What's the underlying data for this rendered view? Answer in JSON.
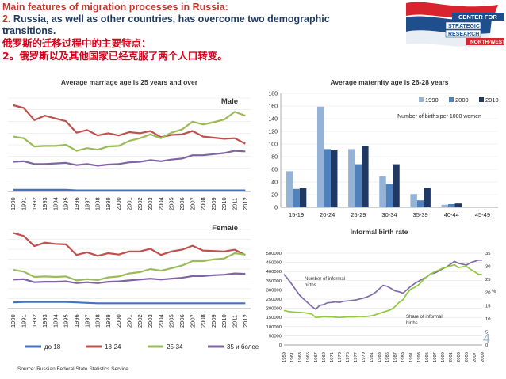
{
  "header": {
    "title_line1": "Main features of migration processes in Russia:",
    "point_number": "2.",
    "title_line2": " Russia, as well as other countries, has overcome two demographic transitions.",
    "cn_line1": "俄罗斯的迁移过程中的主要特点：",
    "cn_line2": "2。俄罗斯以及其他国家已经克服了两个人口转变。"
  },
  "logo": {
    "line1": "CENTER FOR",
    "line2": "STRATEGIC",
    "line3": "RESEARCH",
    "line4": "NORTH-WEST",
    "colors": {
      "red": "#d9232e",
      "blue": "#1f4e8c",
      "white": "#ffffff"
    }
  },
  "source": "Source: Russian Federal State Statistics Service",
  "page_number": "4",
  "chart_data": [
    {
      "type": "line",
      "title": "Average marriage age is 25 years and over",
      "panel_label": "Male",
      "x": [
        "1990",
        "1991",
        "1992",
        "1993",
        "1994",
        "1995",
        "1996",
        "1997",
        "1998",
        "1999",
        "2000",
        "2001",
        "2002",
        "2003",
        "2004",
        "2005",
        "2006",
        "2007",
        "2008",
        "2009",
        "2010",
        "2011",
        "2012"
      ],
      "ylim": [
        0,
        170
      ],
      "grid": true,
      "series": [
        {
          "name": "до 18",
          "color": "#4472c4",
          "values": [
            3,
            3,
            3,
            3,
            3,
            3,
            2,
            2,
            2,
            2,
            2,
            2,
            2,
            2,
            2,
            2,
            2,
            2,
            2,
            2,
            2,
            2,
            2
          ]
        },
        {
          "name": "18-24",
          "color": "#c0504d",
          "values": [
            157,
            152,
            130,
            138,
            133,
            128,
            107,
            112,
            102,
            106,
            102,
            108,
            106,
            110,
            99,
            103,
            104,
            110,
            100,
            98,
            96,
            97,
            87
          ]
        },
        {
          "name": "25-34",
          "color": "#9bbb59",
          "values": [
            100,
            97,
            82,
            83,
            83,
            85,
            74,
            79,
            76,
            82,
            83,
            92,
            97,
            104,
            97,
            107,
            113,
            127,
            122,
            126,
            131,
            145,
            138
          ]
        },
        {
          "name": "35 и более",
          "color": "#8064a2",
          "values": [
            54,
            55,
            50,
            50,
            51,
            52,
            48,
            50,
            47,
            49,
            50,
            53,
            54,
            57,
            55,
            58,
            60,
            66,
            66,
            68,
            70,
            74,
            73
          ]
        }
      ]
    },
    {
      "type": "line",
      "panel_label": "Female",
      "x": [
        "1990",
        "1991",
        "1992",
        "1993",
        "1994",
        "1995",
        "1996",
        "1997",
        "1998",
        "1999",
        "2000",
        "2001",
        "2002",
        "2003",
        "2004",
        "2005",
        "2006",
        "2007",
        "2008",
        "2009",
        "2010",
        "2011",
        "2012"
      ],
      "ylim": [
        0,
        180
      ],
      "grid": true,
      "series": [
        {
          "name": "до 18",
          "color": "#4472c4",
          "values": [
            14,
            15,
            15,
            15,
            15,
            15,
            14,
            13,
            12,
            12,
            12,
            12,
            12,
            12,
            12,
            12,
            12,
            12,
            12,
            12,
            12,
            12,
            12
          ]
        },
        {
          "name": "18-24",
          "color": "#c0504d",
          "values": [
            172,
            165,
            142,
            150,
            147,
            146,
            122,
            128,
            120,
            126,
            123,
            130,
            130,
            136,
            122,
            130,
            134,
            143,
            132,
            131,
            130,
            134,
            122
          ]
        },
        {
          "name": "25-34",
          "color": "#9bbb59",
          "values": [
            88,
            84,
            72,
            73,
            72,
            73,
            64,
            67,
            65,
            71,
            73,
            80,
            83,
            90,
            86,
            92,
            98,
            108,
            108,
            112,
            114,
            126,
            123
          ]
        },
        {
          "name": "35 и более",
          "color": "#8064a2",
          "values": [
            66,
            67,
            60,
            61,
            61,
            62,
            58,
            60,
            58,
            61,
            62,
            64,
            66,
            68,
            66,
            68,
            70,
            74,
            74,
            76,
            77,
            80,
            79
          ]
        }
      ]
    },
    {
      "type": "bar",
      "title": "Average maternity age is 26-28 years",
      "annotation": "Number of births per 1000 women",
      "categories": [
        "15-19",
        "20-24",
        "25-29",
        "30-34",
        "35-39",
        "40-44",
        "45-49"
      ],
      "ylim": [
        0,
        180
      ],
      "yticks": [
        0,
        20,
        40,
        60,
        80,
        100,
        120,
        140,
        160,
        180
      ],
      "legend": "top-right",
      "series": [
        {
          "name": "1990",
          "color": "#95b3d7",
          "values": [
            57,
            159,
            92,
            49,
            21,
            4,
            0
          ]
        },
        {
          "name": "2000",
          "color": "#4f81bd",
          "values": [
            29,
            92,
            68,
            37,
            11,
            5,
            0
          ]
        },
        {
          "name": "2010",
          "color": "#1f3864",
          "values": [
            30,
            90,
            97,
            68,
            31,
            6,
            0
          ]
        }
      ]
    },
    {
      "type": "line",
      "title": "Informal birth rate",
      "annotations": [
        "Number of informal births",
        "Share of informal births"
      ],
      "x_start": 1959,
      "x_end": 2009,
      "x_tick_labels": [
        "1959",
        "1961",
        "1963",
        "1965",
        "1967",
        "1969",
        "1971",
        "1973",
        "1975",
        "1977",
        "1979",
        "1981",
        "1983",
        "1985",
        "1987",
        "1989",
        "1991",
        "1993",
        "1995",
        "1997",
        "1999",
        "2001",
        "2003",
        "2005",
        "2007",
        "2009"
      ],
      "ylim_left": [
        0,
        500000
      ],
      "yticks_left": [
        "0",
        "50000",
        "100000",
        "150000",
        "200000",
        "250000",
        "300000",
        "350000",
        "400000",
        "450000",
        "500000"
      ],
      "ylim_right": [
        0,
        35
      ],
      "yticks_right": [
        "0",
        "5",
        "10",
        "15",
        "20",
        "25",
        "30",
        "35"
      ],
      "right_axis_label": "%",
      "series": [
        {
          "name": "Number of informal births",
          "color": "#7f6ba6",
          "axis": "left",
          "values": [
            385000,
            360000,
            330000,
            300000,
            270000,
            250000,
            230000,
            210000,
            195000,
            215000,
            220000,
            230000,
            232000,
            235000,
            232000,
            238000,
            240000,
            242000,
            245000,
            250000,
            255000,
            262000,
            272000,
            285000,
            305000,
            325000,
            320000,
            308000,
            295000,
            290000,
            282000,
            300000,
            320000,
            335000,
            348000,
            360000,
            370000,
            388000,
            392000,
            402000,
            415000,
            425000,
            440000,
            455000,
            445000,
            440000,
            435000,
            448000,
            455000,
            462000,
            462000
          ]
        },
        {
          "name": "Share of informal births",
          "color": "#92c83e",
          "axis": "right",
          "values": [
            13.2,
            12.8,
            12.6,
            12.5,
            12.4,
            12.3,
            12.1,
            11.8,
            10.5,
            10.6,
            10.8,
            10.7,
            10.7,
            10.6,
            10.5,
            10.6,
            10.7,
            10.7,
            10.7,
            10.9,
            10.8,
            10.9,
            11.1,
            11.5,
            12.0,
            12.5,
            13.0,
            13.5,
            14.6,
            16.2,
            17.2,
            19.6,
            21.3,
            22.0,
            23.0,
            24.6,
            26.1,
            27.0,
            27.9,
            28.5,
            29.3,
            29.7,
            30.1,
            30.6,
            29.5,
            29.8,
            30.0,
            28.9,
            28.0,
            27.0,
            26.8
          ]
        }
      ]
    }
  ]
}
